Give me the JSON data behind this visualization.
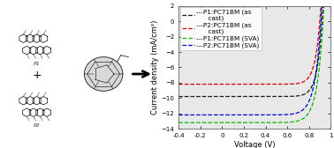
{
  "title": "",
  "xlabel": "Voltage (V)",
  "ylabel": "Current density (mA/cm²)",
  "xlim": [
    -0.4,
    1.0
  ],
  "ylim": [
    -14,
    2
  ],
  "xticks": [
    -0.4,
    -0.2,
    0,
    0.2,
    0.4,
    0.6,
    0.8,
    1.0
  ],
  "xtick_labels": [
    "-0.4",
    "-0.2",
    "0",
    "0.2",
    "0.4",
    "0.6",
    "0.8",
    "1"
  ],
  "yticks": [
    -14,
    -12,
    -10,
    -8,
    -6,
    -4,
    -2,
    0,
    2
  ],
  "curves": [
    {
      "label": "---P1:PC71BM (as\n      cast)",
      "color": "#1a1a1a",
      "linestyle": "--",
      "jsc": -9.8,
      "voc": 0.92,
      "n": 1.8
    },
    {
      "label": "---P2:PC71BM (as\n      cast)",
      "color": "#cc0000",
      "linestyle": "--",
      "jsc": -8.2,
      "voc": 0.9,
      "n": 1.8
    },
    {
      "label": "---P1:PC71BM (SVA)",
      "color": "#00bb00",
      "linestyle": "--",
      "jsc": -13.2,
      "voc": 0.93,
      "n": 2.2
    },
    {
      "label": "---P2:PC71BM (SVA)",
      "color": "#0000cc",
      "linestyle": "--",
      "jsc": -12.2,
      "voc": 0.91,
      "n": 2.2
    }
  ],
  "plot_bg": "#e8e8e8",
  "legend_fontsize": 5.2,
  "axis_fontsize": 6.0,
  "tick_fontsize": 5.0
}
